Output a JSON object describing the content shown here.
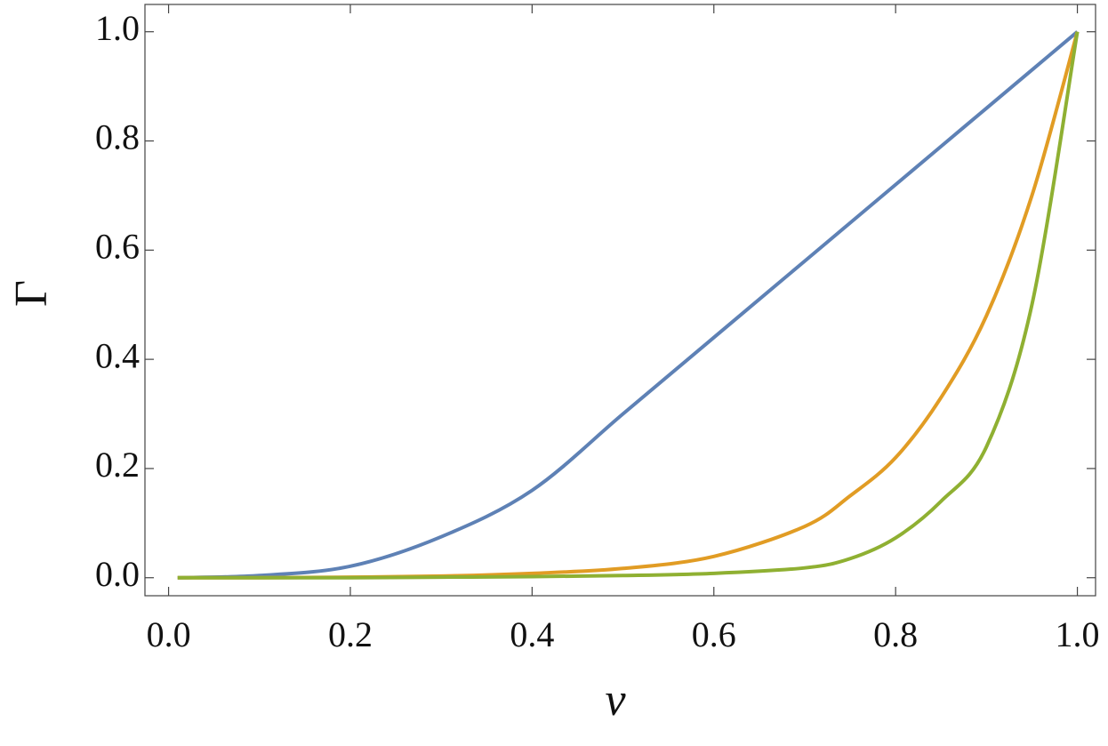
{
  "chart_data": {
    "type": "line",
    "xlabel": "ν",
    "ylabel": "Γ",
    "x": [
      0.01,
      0.1,
      0.2,
      0.3,
      0.4,
      0.5,
      0.6,
      0.7,
      0.75,
      0.8,
      0.85,
      0.9,
      0.95,
      1.0
    ],
    "series": [
      {
        "color": "#5e81b5",
        "values": [
          0,
          0.004,
          0.021,
          0.075,
          0.16,
          0.3,
          0.44,
          0.58,
          0.65,
          0.72,
          0.79,
          0.86,
          0.93,
          1.0
        ]
      },
      {
        "color": "#e19c24",
        "values": [
          0,
          0,
          0.001,
          0.003,
          0.008,
          0.017,
          0.039,
          0.094,
          0.15,
          0.22,
          0.33,
          0.48,
          0.7,
          1.0
        ]
      },
      {
        "color": "#8fb032",
        "values": [
          0,
          0,
          0,
          0.001,
          0.002,
          0.004,
          0.008,
          0.018,
          0.035,
          0.073,
          0.14,
          0.24,
          0.5,
          1.0
        ]
      }
    ],
    "xlim": [
      -0.026,
      1.02
    ],
    "ylim": [
      -0.033,
      1.05
    ],
    "xticks": [
      {
        "value": 0,
        "label": "0.0"
      },
      0.2,
      0.4,
      0.6,
      0.8,
      {
        "value": 1,
        "label": "1.0"
      }
    ],
    "yticks": [
      {
        "value": 0,
        "label": "0.0"
      },
      0.2,
      0.4,
      0.6,
      0.8,
      {
        "value": 1,
        "label": "1.0"
      }
    ]
  }
}
